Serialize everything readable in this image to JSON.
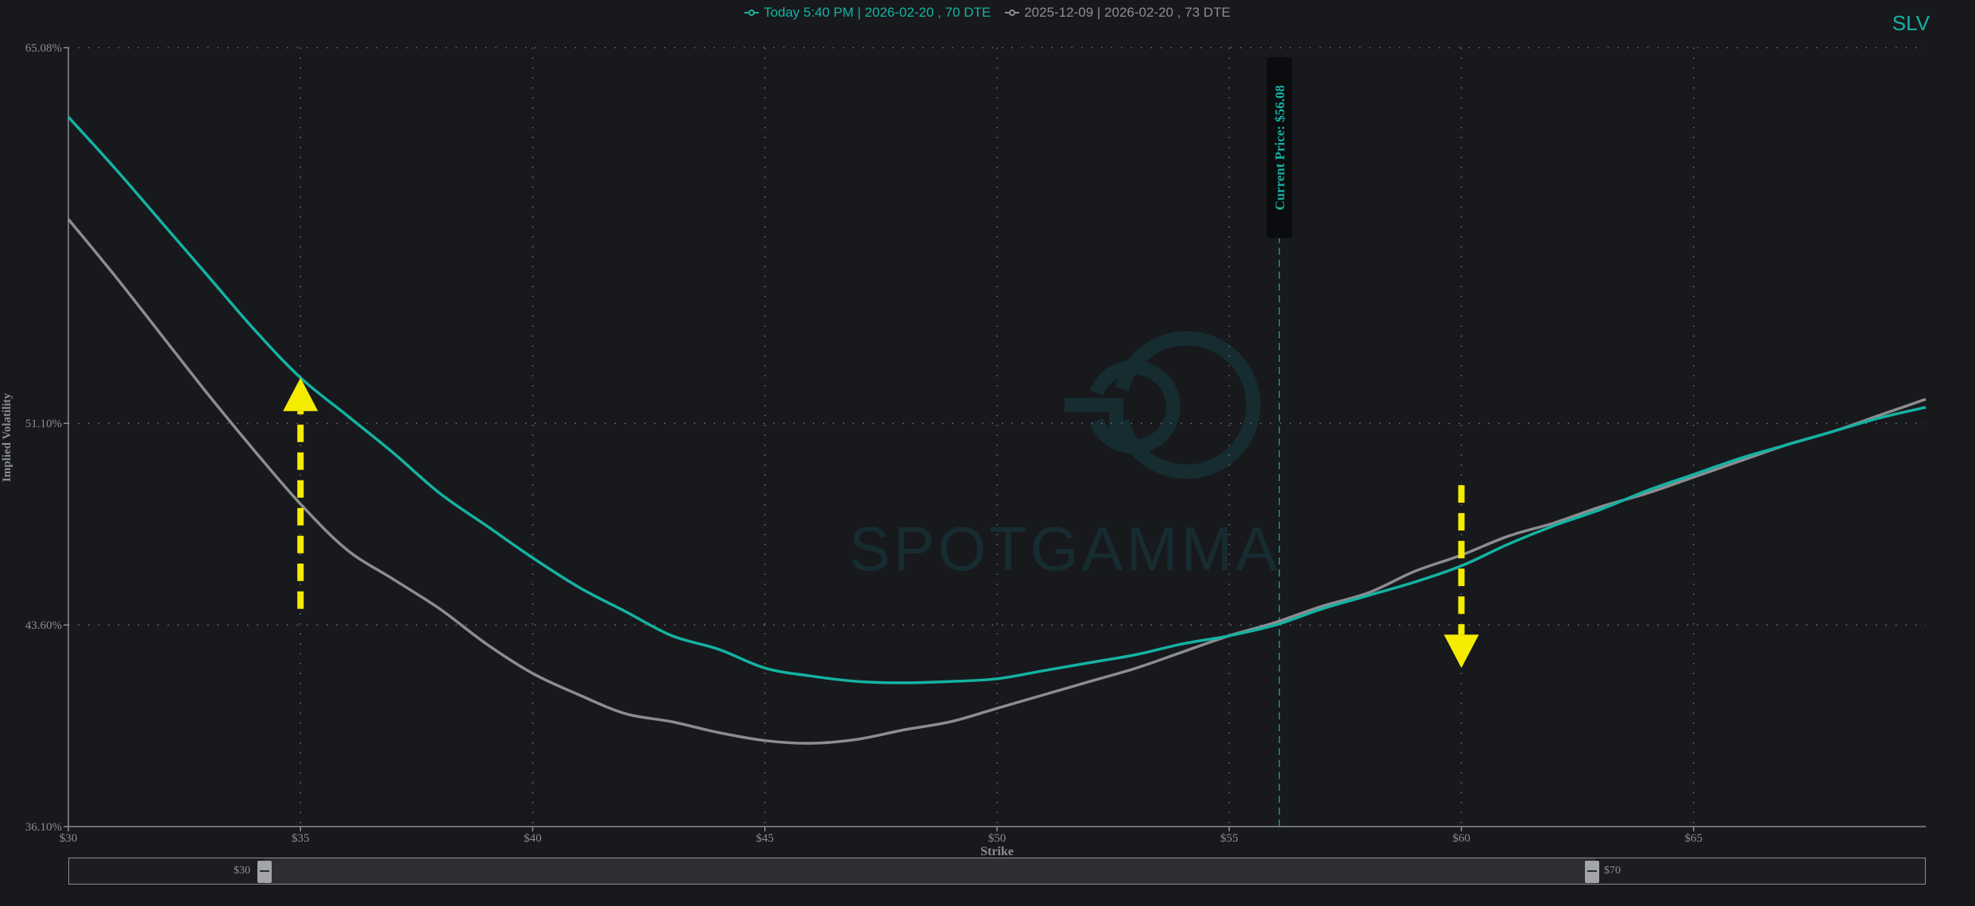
{
  "ticker": "SLV",
  "legend": [
    {
      "label": "Today 5:40 PM | 2026-02-20 , 70 DTE",
      "color": "#13b3a2"
    },
    {
      "label": "2025-12-09 | 2026-02-20 , 73 DTE",
      "color": "#8b8d91"
    }
  ],
  "zoom": {
    "min_label": "$30",
    "max_label": "$70"
  },
  "watermark": "SPOTGAMMA",
  "chart_data": {
    "type": "line",
    "xlabel": "Strike",
    "ylabel": "Implied Volatility",
    "xlim": [
      30,
      70
    ],
    "ylim": [
      36.1,
      65.08
    ],
    "x_ticks": [
      30,
      35,
      40,
      45,
      50,
      55,
      60,
      65
    ],
    "x_tick_labels": [
      "$30",
      "$35",
      "$40",
      "$45",
      "$50",
      "$55",
      "$60",
      "$65"
    ],
    "y_ticks": [
      36.1,
      43.6,
      51.1,
      65.08
    ],
    "y_tick_labels": [
      "36.10%",
      "43.60%",
      "51.10%",
      "65.08%"
    ],
    "grid": true,
    "legend_position": "top-center",
    "current_price": {
      "value": 56.08,
      "label": "Current Price: $56.08"
    },
    "series": [
      {
        "name": "Today 5:40 PM | 2026-02-20 , 70 DTE",
        "color": "#13b3a2",
        "x": [
          30,
          31,
          32,
          33,
          34,
          35,
          36,
          37,
          38,
          39,
          40,
          41,
          42,
          43,
          44,
          45,
          46,
          47,
          48,
          49,
          50,
          51,
          52,
          53,
          54,
          55,
          56,
          57,
          58,
          59,
          60,
          61,
          62,
          63,
          64,
          65,
          66,
          67,
          68,
          69,
          70
        ],
        "values": [
          62.5,
          60.6,
          58.6,
          56.6,
          54.6,
          52.8,
          51.4,
          50.0,
          48.5,
          47.3,
          46.1,
          45.0,
          44.1,
          43.2,
          42.7,
          42.0,
          41.7,
          41.5,
          41.45,
          41.5,
          41.6,
          41.9,
          42.2,
          42.5,
          42.9,
          43.2,
          43.6,
          44.2,
          44.7,
          45.2,
          45.8,
          46.6,
          47.3,
          47.9,
          48.6,
          49.2,
          49.8,
          50.3,
          50.8,
          51.3,
          51.7
        ]
      },
      {
        "name": "2025-12-09 | 2026-02-20 , 73 DTE",
        "color": "#8b8d91",
        "x": [
          30,
          31,
          32,
          33,
          34,
          35,
          36,
          37,
          38,
          39,
          40,
          41,
          42,
          43,
          44,
          45,
          46,
          47,
          48,
          49,
          50,
          51,
          52,
          53,
          54,
          55,
          56,
          57,
          58,
          59,
          60,
          61,
          62,
          63,
          64,
          65,
          66,
          67,
          68,
          69,
          70
        ],
        "values": [
          58.7,
          56.6,
          54.4,
          52.2,
          50.1,
          48.1,
          46.4,
          45.3,
          44.2,
          42.9,
          41.8,
          41.0,
          40.3,
          40.0,
          39.6,
          39.3,
          39.2,
          39.35,
          39.7,
          40.0,
          40.5,
          41.0,
          41.5,
          42.0,
          42.6,
          43.2,
          43.7,
          44.3,
          44.8,
          45.6,
          46.2,
          46.9,
          47.4,
          48.0,
          48.5,
          49.1,
          49.7,
          50.3,
          50.8,
          51.4,
          52.0
        ]
      }
    ],
    "annotations": [
      {
        "type": "arrow-up",
        "x": 35,
        "y_from": 44.2,
        "y_to": 52.8,
        "color": "#f5ec00"
      },
      {
        "type": "arrow-down",
        "x": 60,
        "y_from": 48.8,
        "y_to": 42.0,
        "color": "#f5ec00"
      }
    ]
  }
}
